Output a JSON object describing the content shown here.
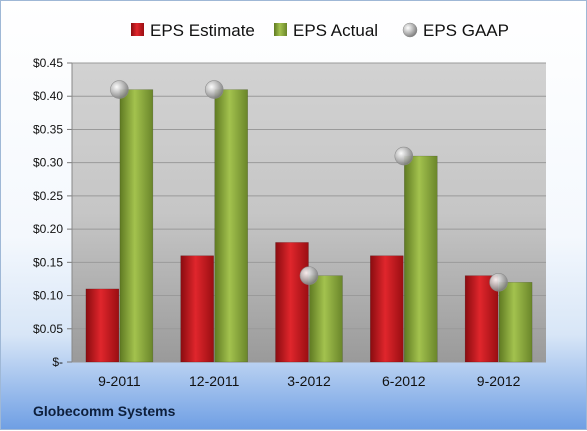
{
  "company": "Globecomm Systems",
  "chart_data": {
    "type": "bar",
    "title": "",
    "xlabel": "",
    "ylabel": "",
    "categories": [
      "9-2011",
      "12-2011",
      "3-2012",
      "6-2012",
      "9-2012"
    ],
    "series": [
      {
        "name": "EPS Estimate",
        "kind": "bar",
        "color": "#c0161c",
        "values": [
          0.11,
          0.16,
          0.18,
          0.16,
          0.13
        ]
      },
      {
        "name": "EPS Actual",
        "kind": "bar",
        "color": "#8aa83c",
        "values": [
          0.41,
          0.41,
          0.13,
          0.31,
          0.12
        ]
      },
      {
        "name": "EPS GAAP",
        "kind": "marker",
        "color": "#a9a9a9",
        "values": [
          0.41,
          0.41,
          0.13,
          0.31,
          0.12
        ]
      }
    ],
    "ylim": [
      0,
      0.45
    ],
    "yticks": [
      0,
      0.05,
      0.1,
      0.15,
      0.2,
      0.25,
      0.3,
      0.35,
      0.4,
      0.45
    ],
    "ytick_labels": [
      "$-",
      "$0.05",
      "$0.10",
      "$0.15",
      "$0.20",
      "$0.25",
      "$0.30",
      "$0.35",
      "$0.40",
      "$0.45"
    ],
    "grid": true,
    "legend_position": "top"
  }
}
